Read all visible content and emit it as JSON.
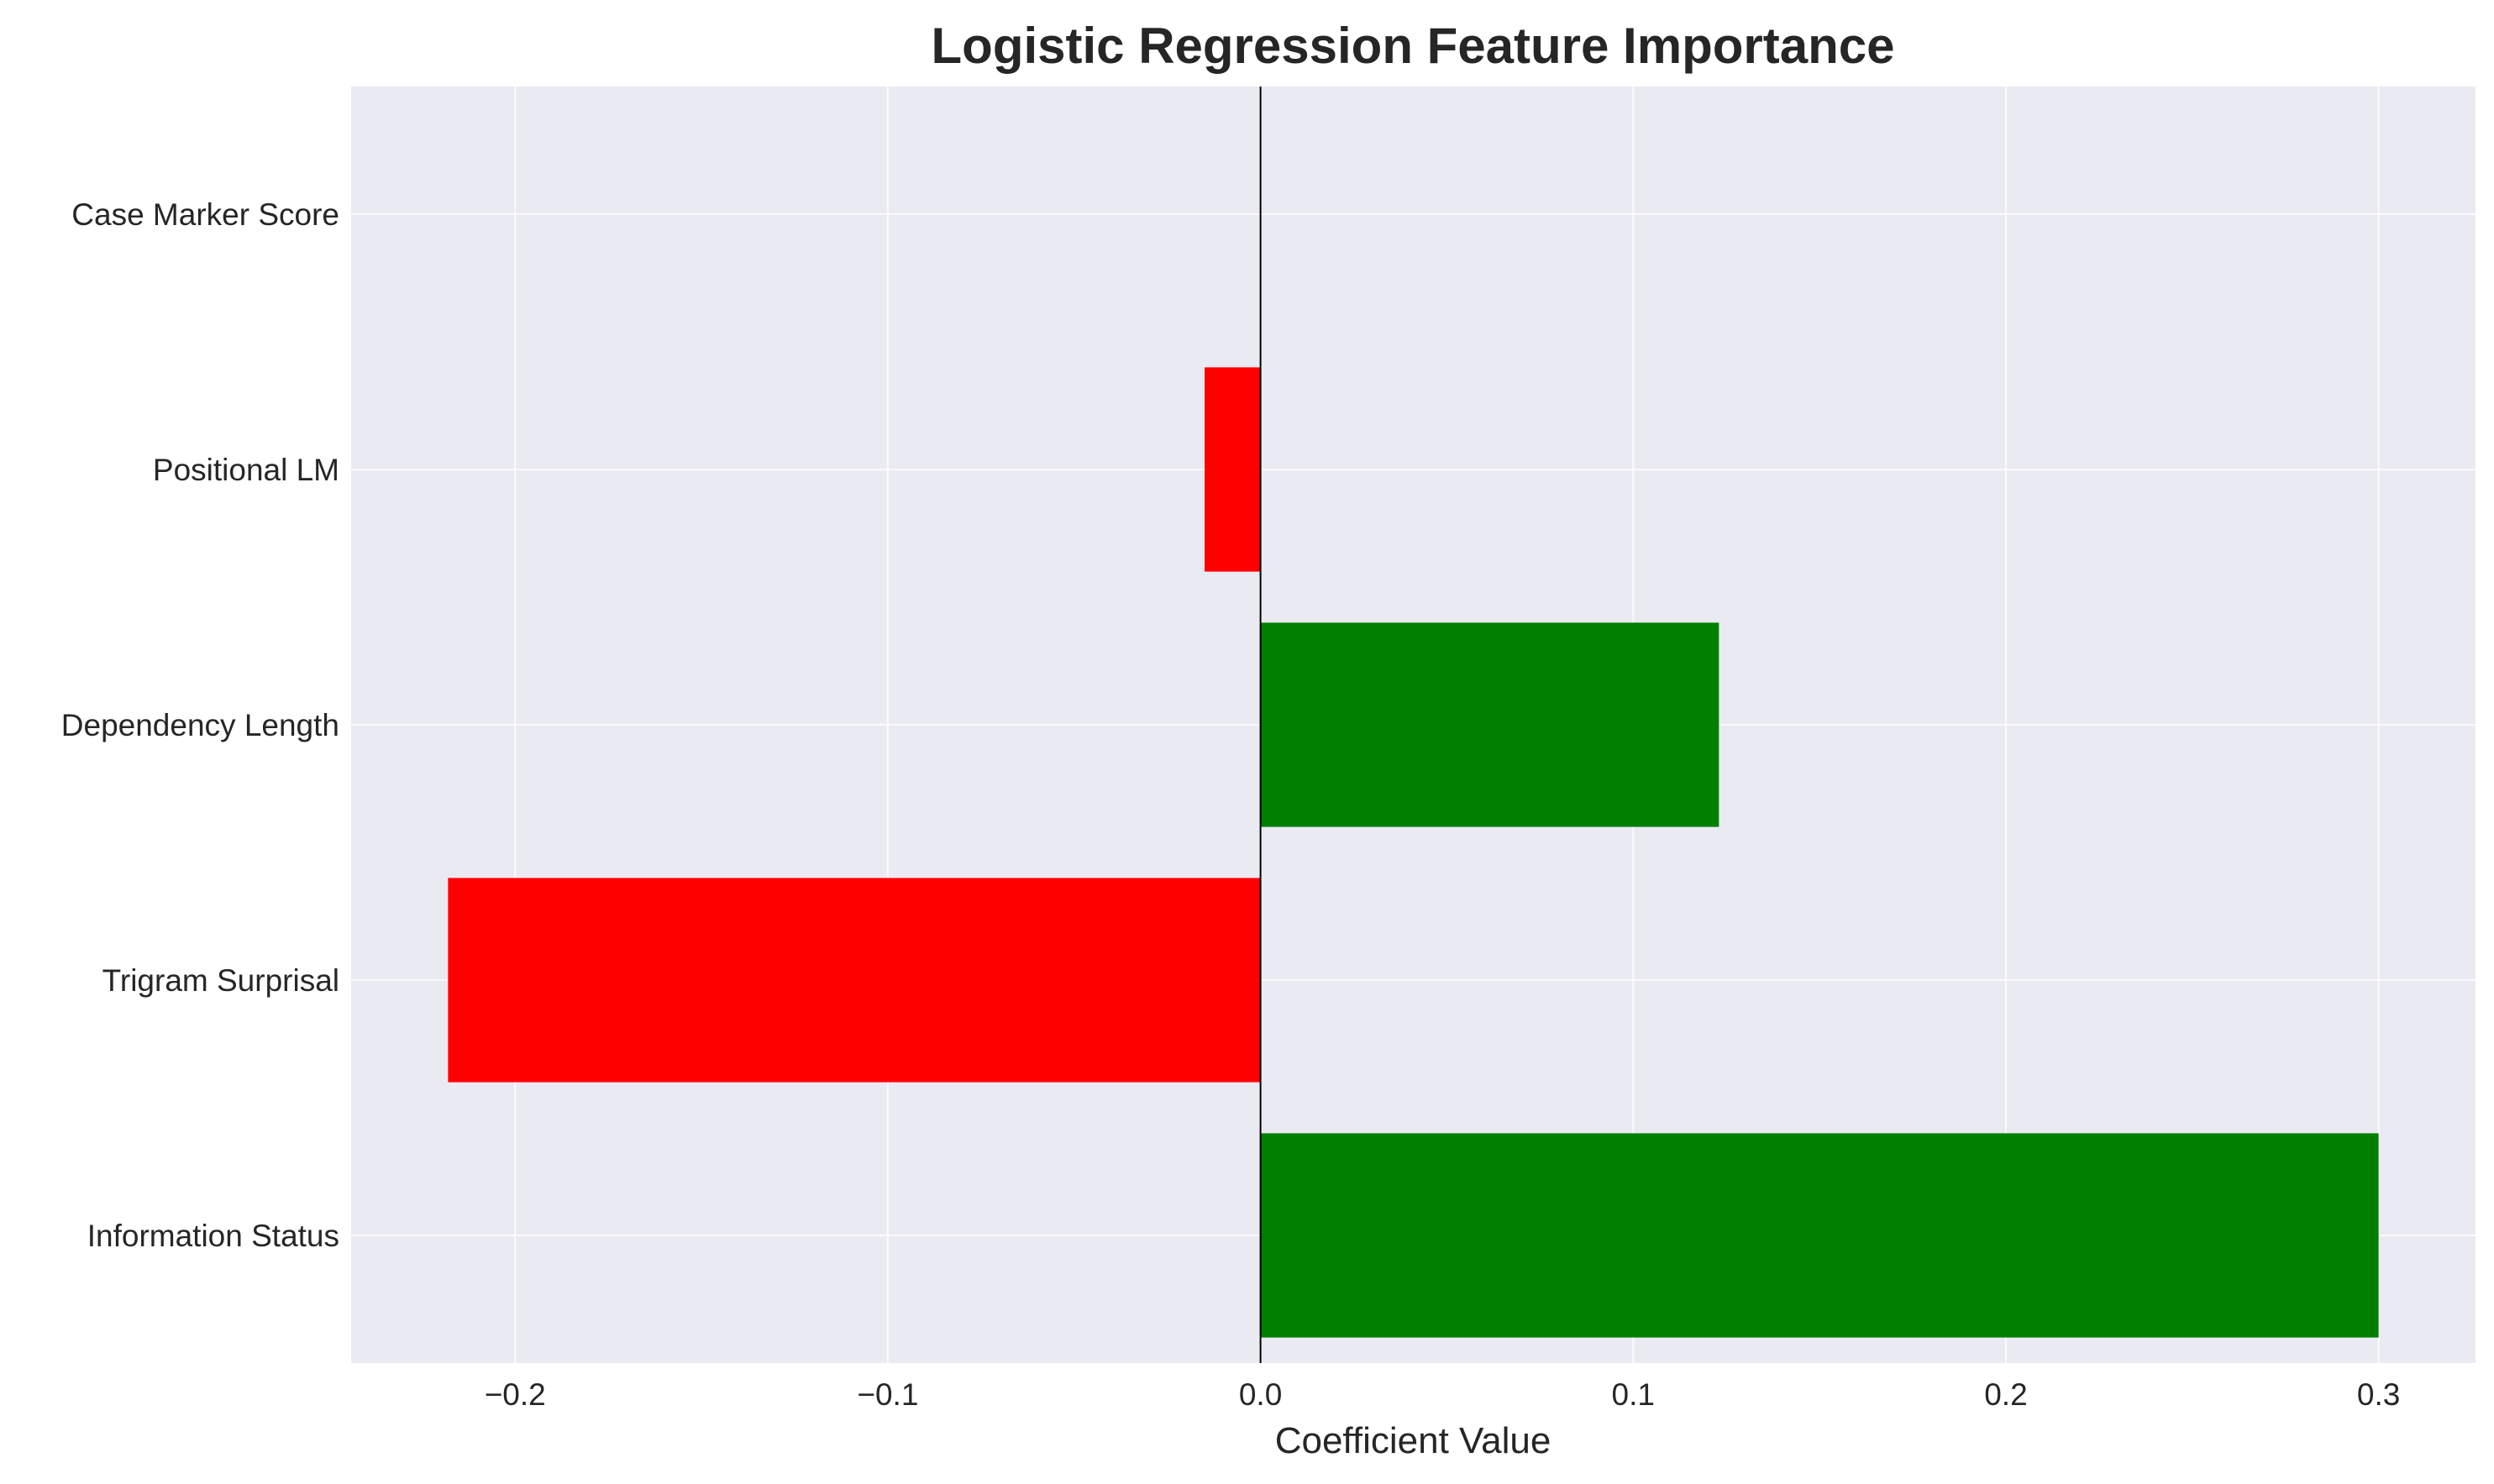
{
  "chart_data": {
    "type": "bar",
    "orientation": "horizontal",
    "title": "Logistic Regression Feature Importance",
    "xlabel": "Coefficient Value",
    "ylabel": "",
    "categories": [
      "Information Status",
      "Trigram Surprisal",
      "Dependency Length",
      "Positional LM",
      "Case Marker Score"
    ],
    "values": [
      0.3,
      -0.218,
      0.123,
      -0.015,
      0.0
    ],
    "xlim": [
      -0.244,
      0.326
    ],
    "xticks": [
      -0.2,
      -0.1,
      0.0,
      0.1,
      0.2,
      0.3
    ],
    "xtick_labels": [
      "−0.2",
      "−0.1",
      "0.0",
      "0.1",
      "0.2",
      "0.3"
    ],
    "grid": true,
    "zero_line": true,
    "colors": {
      "positive": "#008000",
      "negative": "#ff0000",
      "background": "#eaeaf2",
      "grid": "#ffffff",
      "zero_line": "#000000"
    }
  }
}
